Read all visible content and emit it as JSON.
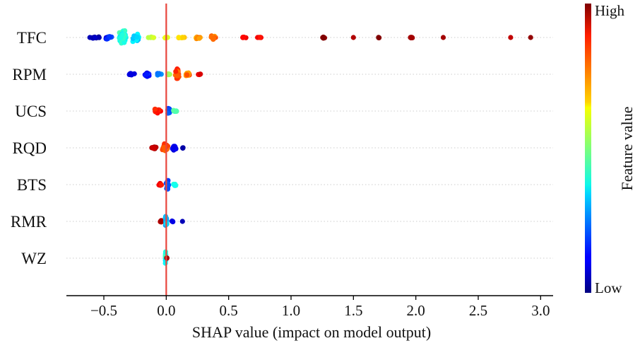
{
  "chart_data": {
    "type": "scatter",
    "subtype": "shap-beeswarm",
    "xlabel": "SHAP value (impact on model output)",
    "xlim": [
      -0.8,
      3.1
    ],
    "xticks": [
      -0.5,
      0.0,
      0.5,
      1.0,
      1.5,
      2.0,
      2.5,
      3.0
    ],
    "xtick_labels": [
      "−0.5",
      "0.0",
      "0.5",
      "1.0",
      "1.5",
      "2.0",
      "2.5",
      "3.0"
    ],
    "zero_line": 0.0,
    "features": [
      {
        "name": "TFC",
        "clusters": [
          {
            "v": -0.58,
            "c": 0.05,
            "n": 14,
            "s": 0.05,
            "h": 0.08
          },
          {
            "v": -0.46,
            "c": 0.15,
            "n": 12,
            "s": 0.05,
            "h": 0.15
          },
          {
            "v": -0.35,
            "c": 0.4,
            "n": 70,
            "s": 0.04,
            "h": 0.45
          },
          {
            "v": -0.24,
            "c": 0.35,
            "n": 25,
            "s": 0.04,
            "h": 0.25
          },
          {
            "v": -0.12,
            "c": 0.55,
            "n": 8,
            "s": 0.04,
            "h": 0.05
          },
          {
            "v": 0.0,
            "c": 0.6,
            "n": 6,
            "s": 0.03,
            "h": 0.05
          },
          {
            "v": 0.12,
            "c": 0.65,
            "n": 8,
            "s": 0.04,
            "h": 0.05
          },
          {
            "v": 0.25,
            "c": 0.72,
            "n": 14,
            "s": 0.05,
            "h": 0.12
          },
          {
            "v": 0.38,
            "c": 0.76,
            "n": 18,
            "s": 0.04,
            "h": 0.18
          },
          {
            "v": 0.62,
            "c": 0.87,
            "n": 8,
            "s": 0.03,
            "h": 0.05
          },
          {
            "v": 0.75,
            "c": 0.88,
            "n": 6,
            "s": 0.03,
            "h": 0.05
          },
          {
            "v": 1.26,
            "c": 0.97,
            "n": 8,
            "s": 0.02,
            "h": 0.05
          },
          {
            "v": 1.5,
            "c": 0.97,
            "n": 1,
            "s": 0.0,
            "h": 0.0
          },
          {
            "v": 1.7,
            "c": 0.97,
            "n": 4,
            "s": 0.01,
            "h": 0.05
          },
          {
            "v": 1.97,
            "c": 0.97,
            "n": 8,
            "s": 0.02,
            "h": 0.04
          },
          {
            "v": 2.22,
            "c": 0.97,
            "n": 1,
            "s": 0.0,
            "h": 0.0
          },
          {
            "v": 2.76,
            "c": 0.97,
            "n": 1,
            "s": 0.0,
            "h": 0.0
          },
          {
            "v": 2.92,
            "c": 0.97,
            "n": 1,
            "s": 0.0,
            "h": 0.0
          }
        ]
      },
      {
        "name": "RPM",
        "clusters": [
          {
            "v": -0.28,
            "c": 0.08,
            "n": 12,
            "s": 0.03,
            "h": 0.08
          },
          {
            "v": -0.15,
            "c": 0.15,
            "n": 22,
            "s": 0.03,
            "h": 0.15
          },
          {
            "v": -0.06,
            "c": 0.25,
            "n": 10,
            "s": 0.03,
            "h": 0.08
          },
          {
            "v": 0.02,
            "c": 0.55,
            "n": 8,
            "s": 0.03,
            "h": 0.05
          },
          {
            "v": 0.09,
            "c": 0.8,
            "n": 30,
            "s": 0.02,
            "h": 0.45
          },
          {
            "v": 0.17,
            "c": 0.75,
            "n": 18,
            "s": 0.04,
            "h": 0.15
          },
          {
            "v": 0.27,
            "c": 0.9,
            "n": 6,
            "s": 0.02,
            "h": 0.05
          }
        ]
      },
      {
        "name": "UCS",
        "clusters": [
          {
            "v": -0.07,
            "c": 0.85,
            "n": 22,
            "s": 0.04,
            "h": 0.18
          },
          {
            "v": 0.02,
            "c": 0.2,
            "n": 20,
            "s": 0.02,
            "h": 0.25
          },
          {
            "v": 0.07,
            "c": 0.45,
            "n": 10,
            "s": 0.02,
            "h": 0.08
          }
        ]
      },
      {
        "name": "RQD",
        "clusters": [
          {
            "v": -0.1,
            "c": 0.95,
            "n": 14,
            "s": 0.03,
            "h": 0.08
          },
          {
            "v": -0.01,
            "c": 0.8,
            "n": 40,
            "s": 0.03,
            "h": 0.28
          },
          {
            "v": 0.06,
            "c": 0.1,
            "n": 18,
            "s": 0.03,
            "h": 0.15
          },
          {
            "v": 0.13,
            "c": 0.05,
            "n": 3,
            "s": 0.01,
            "h": 0.05
          }
        ]
      },
      {
        "name": "BTS",
        "clusters": [
          {
            "v": -0.05,
            "c": 0.9,
            "n": 12,
            "s": 0.02,
            "h": 0.1
          },
          {
            "v": 0.01,
            "c": 0.2,
            "n": 30,
            "s": 0.015,
            "h": 0.4
          },
          {
            "v": 0.07,
            "c": 0.4,
            "n": 10,
            "s": 0.02,
            "h": 0.08
          }
        ]
      },
      {
        "name": "RMR",
        "clusters": [
          {
            "v": -0.04,
            "c": 0.95,
            "n": 10,
            "s": 0.015,
            "h": 0.08
          },
          {
            "v": 0.0,
            "c": 0.3,
            "n": 30,
            "s": 0.01,
            "h": 0.4
          },
          {
            "v": 0.05,
            "c": 0.1,
            "n": 6,
            "s": 0.015,
            "h": 0.05
          },
          {
            "v": 0.13,
            "c": 0.05,
            "n": 1,
            "s": 0.0,
            "h": 0.0
          }
        ]
      },
      {
        "name": "WZ",
        "clusters": [
          {
            "v": -0.005,
            "c": 0.4,
            "n": 24,
            "s": 0.004,
            "h": 0.4
          },
          {
            "v": 0.005,
            "c": 0.97,
            "n": 3,
            "s": 0.003,
            "h": 0.05
          }
        ]
      }
    ],
    "colorbar": {
      "title": "Feature value",
      "high_label": "High",
      "low_label": "Low",
      "colormap": "jet"
    }
  },
  "colors": {
    "zero_line": "#e8453c",
    "axis": "#000000",
    "gridline": "#cccccc"
  }
}
